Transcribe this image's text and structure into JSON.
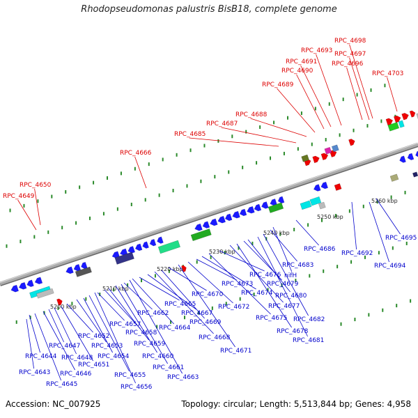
{
  "title": "Rhodopseudomonas palustris BisB18, complete genome",
  "footer": {
    "accession": "Accession: NC_007925",
    "summary": "Topology: circular; Length: 5,513,844 bp; Genes: 4,958"
  },
  "scale_labels": [
    "5200 kbp",
    "5210 kbp",
    "5220 kbp",
    "5230 kbp",
    "5240 kbp",
    "5250 kbp",
    "5260 kbp"
  ],
  "colors": {
    "forward_label": "#dd0000",
    "reverse_label": "#0000cc",
    "axis": "#999999",
    "tick": "#228822"
  },
  "forward_genes": [
    "RPC_4649",
    "RPC_4650",
    "RPC_4666",
    "RPC_4685",
    "RPC_4687",
    "RPC_4688",
    "RPC_4689",
    "RPC_4690",
    "RPC_4691",
    "RPC_4693",
    "RPC_4696",
    "RPC_4697",
    "RPC_4698",
    "RPC_4703"
  ],
  "reverse_genes": [
    "RPC_4643",
    "RPC_4644",
    "RPC_4645",
    "RPC_4646",
    "RPC_4647",
    "RPC_4648",
    "RPC_4651",
    "RPC_4652",
    "RPC_4653",
    "RPC_4654",
    "RPC_4655",
    "RPC_4656",
    "RPC_4657",
    "RPC_4658",
    "RPC_4659",
    "RPC_4660",
    "RPC_4661",
    "RPC_4662",
    "RPC_4663",
    "RPC_4664",
    "RPC_4665",
    "RPC_4667",
    "RPC_4668",
    "RPC_4669",
    "RPC_4670",
    "RPC_4671",
    "RPC_4672",
    "RPC_4673",
    "RPC_4674",
    "RPC_4675",
    "RPC_4676",
    "RPC_4677",
    "RPC_4678",
    "RPC_4679",
    "RPC_4680",
    "RPC_4681",
    "RPC_4682",
    "RPC_4683",
    "nifH",
    "RPC_4686",
    "RPC_4692",
    "RPC_4694",
    "RPC_4695"
  ]
}
